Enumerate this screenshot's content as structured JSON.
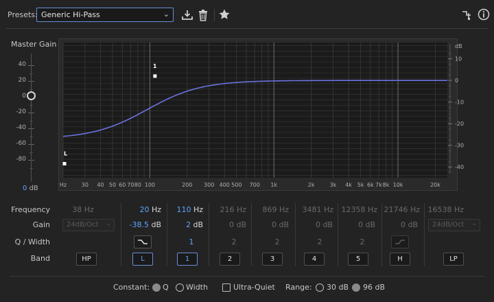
{
  "toolbar": {
    "presets_label": "Presets:",
    "preset_value": "Generic Hi-Pass",
    "icons": [
      "save-preset-icon",
      "delete-preset-icon",
      "favorite-star-icon",
      "routing-icon",
      "info-icon"
    ]
  },
  "master_gain": {
    "label": "Master Gain",
    "ticks": [
      "40",
      "20",
      "0",
      "-20",
      "-40",
      "-60",
      "-80"
    ],
    "value": "0",
    "unit": "dB"
  },
  "graph": {
    "x_ticks": [
      "Hz",
      "30",
      "40",
      "50",
      "60",
      "70",
      "80",
      "100",
      "200",
      "300",
      "400",
      "500",
      "700",
      "1k",
      "2k",
      "3k",
      "4k",
      "5k",
      "6k",
      "7k",
      "8k",
      "10k",
      "20k"
    ],
    "y_unit": "dB",
    "y_ticks": [
      "10",
      "0",
      "-10",
      "-20",
      "-30",
      "-40"
    ],
    "handles": [
      {
        "label": "L",
        "freq_hz": 20,
        "gain_db": -38.5
      },
      {
        "label": "1",
        "freq_hz": 110,
        "gain_db": 2
      }
    ],
    "curve_color": "#6a73e0"
  },
  "rows": {
    "frequency": "Frequency",
    "gain": "Gain",
    "q_width": "Q / Width",
    "band": "Band"
  },
  "bands": {
    "hp": {
      "freq_num": "38",
      "freq_unit": "Hz",
      "gain_select": "24dB/Oct",
      "label": "HP"
    },
    "l": {
      "freq_num": "20",
      "freq_unit": "Hz",
      "gain_num": "-38.5",
      "gain_unit": "dB",
      "label": "L"
    },
    "b1": {
      "freq_num": "110",
      "freq_unit": "Hz",
      "gain_num": "2",
      "gain_unit": "dB",
      "q": "1",
      "label": "1"
    },
    "b2": {
      "freq": "216 Hz",
      "gain": "0 dB",
      "q": "2",
      "label": "2"
    },
    "b3": {
      "freq": "869 Hz",
      "gain": "0 dB",
      "q": "2",
      "label": "3"
    },
    "b4": {
      "freq": "3481 Hz",
      "gain": "0 dB",
      "q": "2",
      "label": "4"
    },
    "b5": {
      "freq": "12358 Hz",
      "gain": "0 dB",
      "q": "2",
      "label": "5"
    },
    "h": {
      "freq": "21746 Hz",
      "gain": "0 dB",
      "label": "H"
    },
    "lp": {
      "freq": "16538 Hz",
      "gain_select": "24dB/Oct",
      "label": "LP"
    }
  },
  "bottom": {
    "constant_label": "Constant:",
    "q_label": "Q",
    "width_label": "Width",
    "ultra_quiet_label": "Ultra-Quiet",
    "range_label": "Range:",
    "range_30": "30 dB",
    "range_96": "96 dB",
    "constant_selected": "Q",
    "range_selected": "96 dB",
    "ultra_quiet_checked": false
  }
}
